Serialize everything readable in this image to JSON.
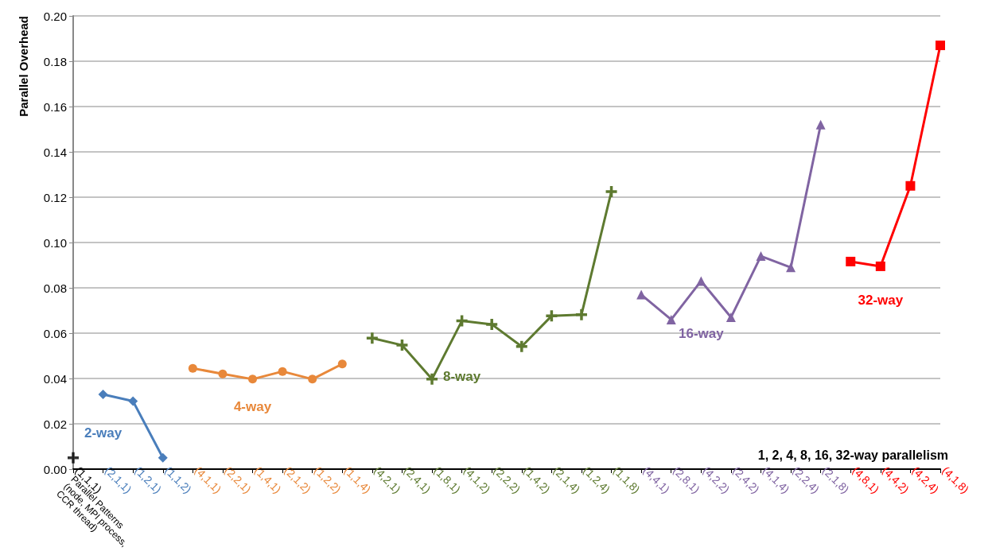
{
  "chart_data": {
    "type": "line",
    "ylabel": "Parallel Overhead",
    "xlabel": "Parallel Patterns (node, MPI process, CCR thread)",
    "categories": [
      "(1,1,1)",
      "(2,1,1)",
      "(1,2,1)",
      "(1,1,2)",
      "(4,1,1)",
      "(2,2,1)",
      "(1,4,1)",
      "(2,1,2)",
      "(1,2,2)",
      "(1,1,4)",
      "(4,2,1)",
      "(2,4,1)",
      "(1,8,1)",
      "(4,1,2)",
      "(2,2,2)",
      "(1,4,2)",
      "(2,1,4)",
      "(1,2,4)",
      "(1,1,8)",
      "(4,4,1)",
      "(2,8,1)",
      "(4,2,2)",
      "(2,4,2)",
      "(4,1,4)",
      "(2,2,4)",
      "(2,1,8)",
      "(4,8,1)",
      "(4,4,2)",
      "(4,2,4)",
      "(4,1,8)"
    ],
    "series": [
      {
        "type": "scatter",
        "color": "#000000",
        "marker": "cross",
        "values": [
          0.005,
          null,
          null,
          null,
          null,
          null,
          null,
          null,
          null,
          null,
          null,
          null,
          null,
          null,
          null,
          null,
          null,
          null,
          null,
          null,
          null,
          null,
          null,
          null,
          null,
          null,
          null,
          null,
          null,
          null
        ]
      },
      {
        "name": "2-way",
        "color": "#4a7ebb",
        "marker": "diamond",
        "values": [
          null,
          0.033,
          0.03,
          0.005,
          null,
          null,
          null,
          null,
          null,
          null,
          null,
          null,
          null,
          null,
          null,
          null,
          null,
          null,
          null,
          null,
          null,
          null,
          null,
          null,
          null,
          null,
          null,
          null,
          null,
          null
        ]
      },
      {
        "name": "4-way",
        "color": "#e8883a",
        "marker": "circle",
        "values": [
          null,
          null,
          null,
          null,
          0.0445,
          0.042,
          0.0397,
          0.0431,
          0.0397,
          0.0464,
          null,
          null,
          null,
          null,
          null,
          null,
          null,
          null,
          null,
          null,
          null,
          null,
          null,
          null,
          null,
          null,
          null,
          null,
          null,
          null
        ]
      },
      {
        "name": "8-way",
        "color": "#5e7a30",
        "marker": "cross",
        "values": [
          null,
          null,
          null,
          null,
          null,
          null,
          null,
          null,
          null,
          null,
          0.0578,
          0.0547,
          0.0397,
          0.0654,
          0.0639,
          0.0541,
          0.0676,
          0.0682,
          0.1225,
          null,
          null,
          null,
          null,
          null,
          null,
          null,
          null,
          null,
          null,
          null
        ]
      },
      {
        "name": "16-way",
        "color": "#8064a2",
        "marker": "triangle",
        "values": [
          null,
          null,
          null,
          null,
          null,
          null,
          null,
          null,
          null,
          null,
          null,
          null,
          null,
          null,
          null,
          null,
          null,
          null,
          null,
          0.077,
          0.066,
          0.083,
          0.067,
          0.094,
          0.089,
          0.152,
          null,
          null,
          null,
          null
        ]
      },
      {
        "name": "32-way",
        "color": "#ff0000",
        "marker": "square",
        "values": [
          null,
          null,
          null,
          null,
          null,
          null,
          null,
          null,
          null,
          null,
          null,
          null,
          null,
          null,
          null,
          null,
          null,
          null,
          null,
          null,
          null,
          null,
          null,
          null,
          null,
          null,
          0.0916,
          0.0895,
          0.125,
          0.187
        ]
      }
    ],
    "ylim": [
      0,
      0.2
    ],
    "yticks": [
      {
        "value": 0,
        "label": "0.00"
      },
      {
        "value": 0.02,
        "label": "0.02"
      },
      {
        "value": 0.04,
        "label": "0.04"
      },
      {
        "value": 0.06,
        "label": "0.06"
      },
      {
        "value": 0.08,
        "label": "0.08"
      },
      {
        "value": 0.1,
        "label": "0.10"
      },
      {
        "value": 0.12,
        "label": "0.12"
      },
      {
        "value": 0.14,
        "label": "0.14"
      },
      {
        "value": 0.16,
        "label": "0.16"
      },
      {
        "value": 0.18,
        "label": "0.18"
      },
      {
        "value": 0.2,
        "label": "0.20"
      }
    ],
    "grid": "y",
    "legend": false,
    "annotations": [
      "1, 2, 4, 8, 16, 32-way parallelism"
    ]
  }
}
